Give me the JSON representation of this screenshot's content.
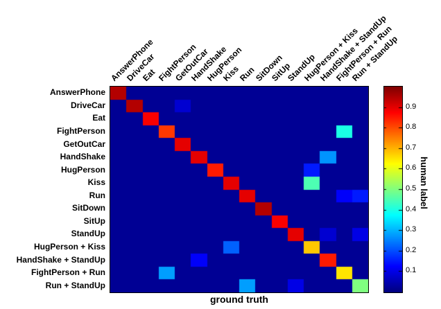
{
  "chart_data": {
    "type": "heatmap",
    "title": "",
    "xlabel": "ground truth",
    "colorbar_label": "human label",
    "colormap": "jet",
    "vmin": 0,
    "vmax": 1,
    "legend_position": "right",
    "grid": false,
    "categories": [
      "AnswerPhone",
      "DriveCar",
      "Eat",
      "FightPerson",
      "GetOutCar",
      "HandShake",
      "HugPerson",
      "Kiss",
      "Run",
      "SitDown",
      "SitUp",
      "StandUp",
      "HugPerson + Kiss",
      "HandShake + StandUp",
      "FightPerson + Run",
      "Run + StandUp"
    ],
    "colorbar_ticks": [
      0.9,
      0.8,
      0.7,
      0.6,
      0.5,
      0.4,
      0.3,
      0.2,
      0.1
    ],
    "matrix": [
      [
        0.95,
        0.02,
        0.02,
        0.02,
        0.02,
        0.02,
        0.02,
        0.02,
        0.02,
        0.02,
        0.02,
        0.02,
        0.02,
        0.02,
        0.02,
        0.02
      ],
      [
        0.02,
        0.95,
        0.02,
        0.02,
        0.08,
        0.02,
        0.02,
        0.02,
        0.02,
        0.02,
        0.02,
        0.02,
        0.02,
        0.02,
        0.02,
        0.02
      ],
      [
        0.02,
        0.02,
        0.88,
        0.02,
        0.02,
        0.02,
        0.02,
        0.02,
        0.02,
        0.02,
        0.02,
        0.02,
        0.02,
        0.02,
        0.02,
        0.02
      ],
      [
        0.02,
        0.02,
        0.02,
        0.82,
        0.02,
        0.02,
        0.02,
        0.02,
        0.02,
        0.02,
        0.02,
        0.02,
        0.02,
        0.02,
        0.4,
        0.02
      ],
      [
        0.02,
        0.02,
        0.02,
        0.02,
        0.9,
        0.02,
        0.02,
        0.02,
        0.02,
        0.02,
        0.02,
        0.02,
        0.02,
        0.02,
        0.02,
        0.02
      ],
      [
        0.02,
        0.02,
        0.02,
        0.02,
        0.02,
        0.9,
        0.02,
        0.02,
        0.02,
        0.02,
        0.02,
        0.02,
        0.02,
        0.27,
        0.02,
        0.02
      ],
      [
        0.02,
        0.02,
        0.02,
        0.02,
        0.02,
        0.02,
        0.85,
        0.02,
        0.02,
        0.02,
        0.02,
        0.02,
        0.15,
        0.02,
        0.02,
        0.02
      ],
      [
        0.02,
        0.02,
        0.02,
        0.02,
        0.02,
        0.02,
        0.02,
        0.9,
        0.02,
        0.02,
        0.02,
        0.02,
        0.45,
        0.02,
        0.02,
        0.02
      ],
      [
        0.02,
        0.02,
        0.02,
        0.02,
        0.02,
        0.02,
        0.02,
        0.02,
        0.9,
        0.02,
        0.02,
        0.02,
        0.02,
        0.02,
        0.12,
        0.15
      ],
      [
        0.02,
        0.02,
        0.02,
        0.02,
        0.02,
        0.02,
        0.02,
        0.02,
        0.02,
        0.95,
        0.02,
        0.02,
        0.02,
        0.02,
        0.02,
        0.02
      ],
      [
        0.02,
        0.02,
        0.02,
        0.02,
        0.02,
        0.02,
        0.02,
        0.02,
        0.02,
        0.02,
        0.88,
        0.02,
        0.02,
        0.02,
        0.02,
        0.02
      ],
      [
        0.02,
        0.02,
        0.02,
        0.02,
        0.02,
        0.02,
        0.02,
        0.02,
        0.02,
        0.02,
        0.02,
        0.9,
        0.02,
        0.08,
        0.02,
        0.1
      ],
      [
        0.02,
        0.02,
        0.02,
        0.02,
        0.02,
        0.02,
        0.02,
        0.22,
        0.02,
        0.02,
        0.02,
        0.02,
        0.68,
        0.02,
        0.02,
        0.02
      ],
      [
        0.02,
        0.02,
        0.02,
        0.02,
        0.02,
        0.12,
        0.02,
        0.02,
        0.02,
        0.02,
        0.02,
        0.02,
        0.02,
        0.85,
        0.02,
        0.02
      ],
      [
        0.02,
        0.02,
        0.02,
        0.28,
        0.02,
        0.02,
        0.02,
        0.02,
        0.02,
        0.02,
        0.02,
        0.02,
        0.02,
        0.02,
        0.65,
        0.02
      ],
      [
        0.02,
        0.02,
        0.02,
        0.02,
        0.02,
        0.02,
        0.02,
        0.02,
        0.28,
        0.02,
        0.02,
        0.1,
        0.02,
        0.02,
        0.02,
        0.5
      ]
    ]
  }
}
